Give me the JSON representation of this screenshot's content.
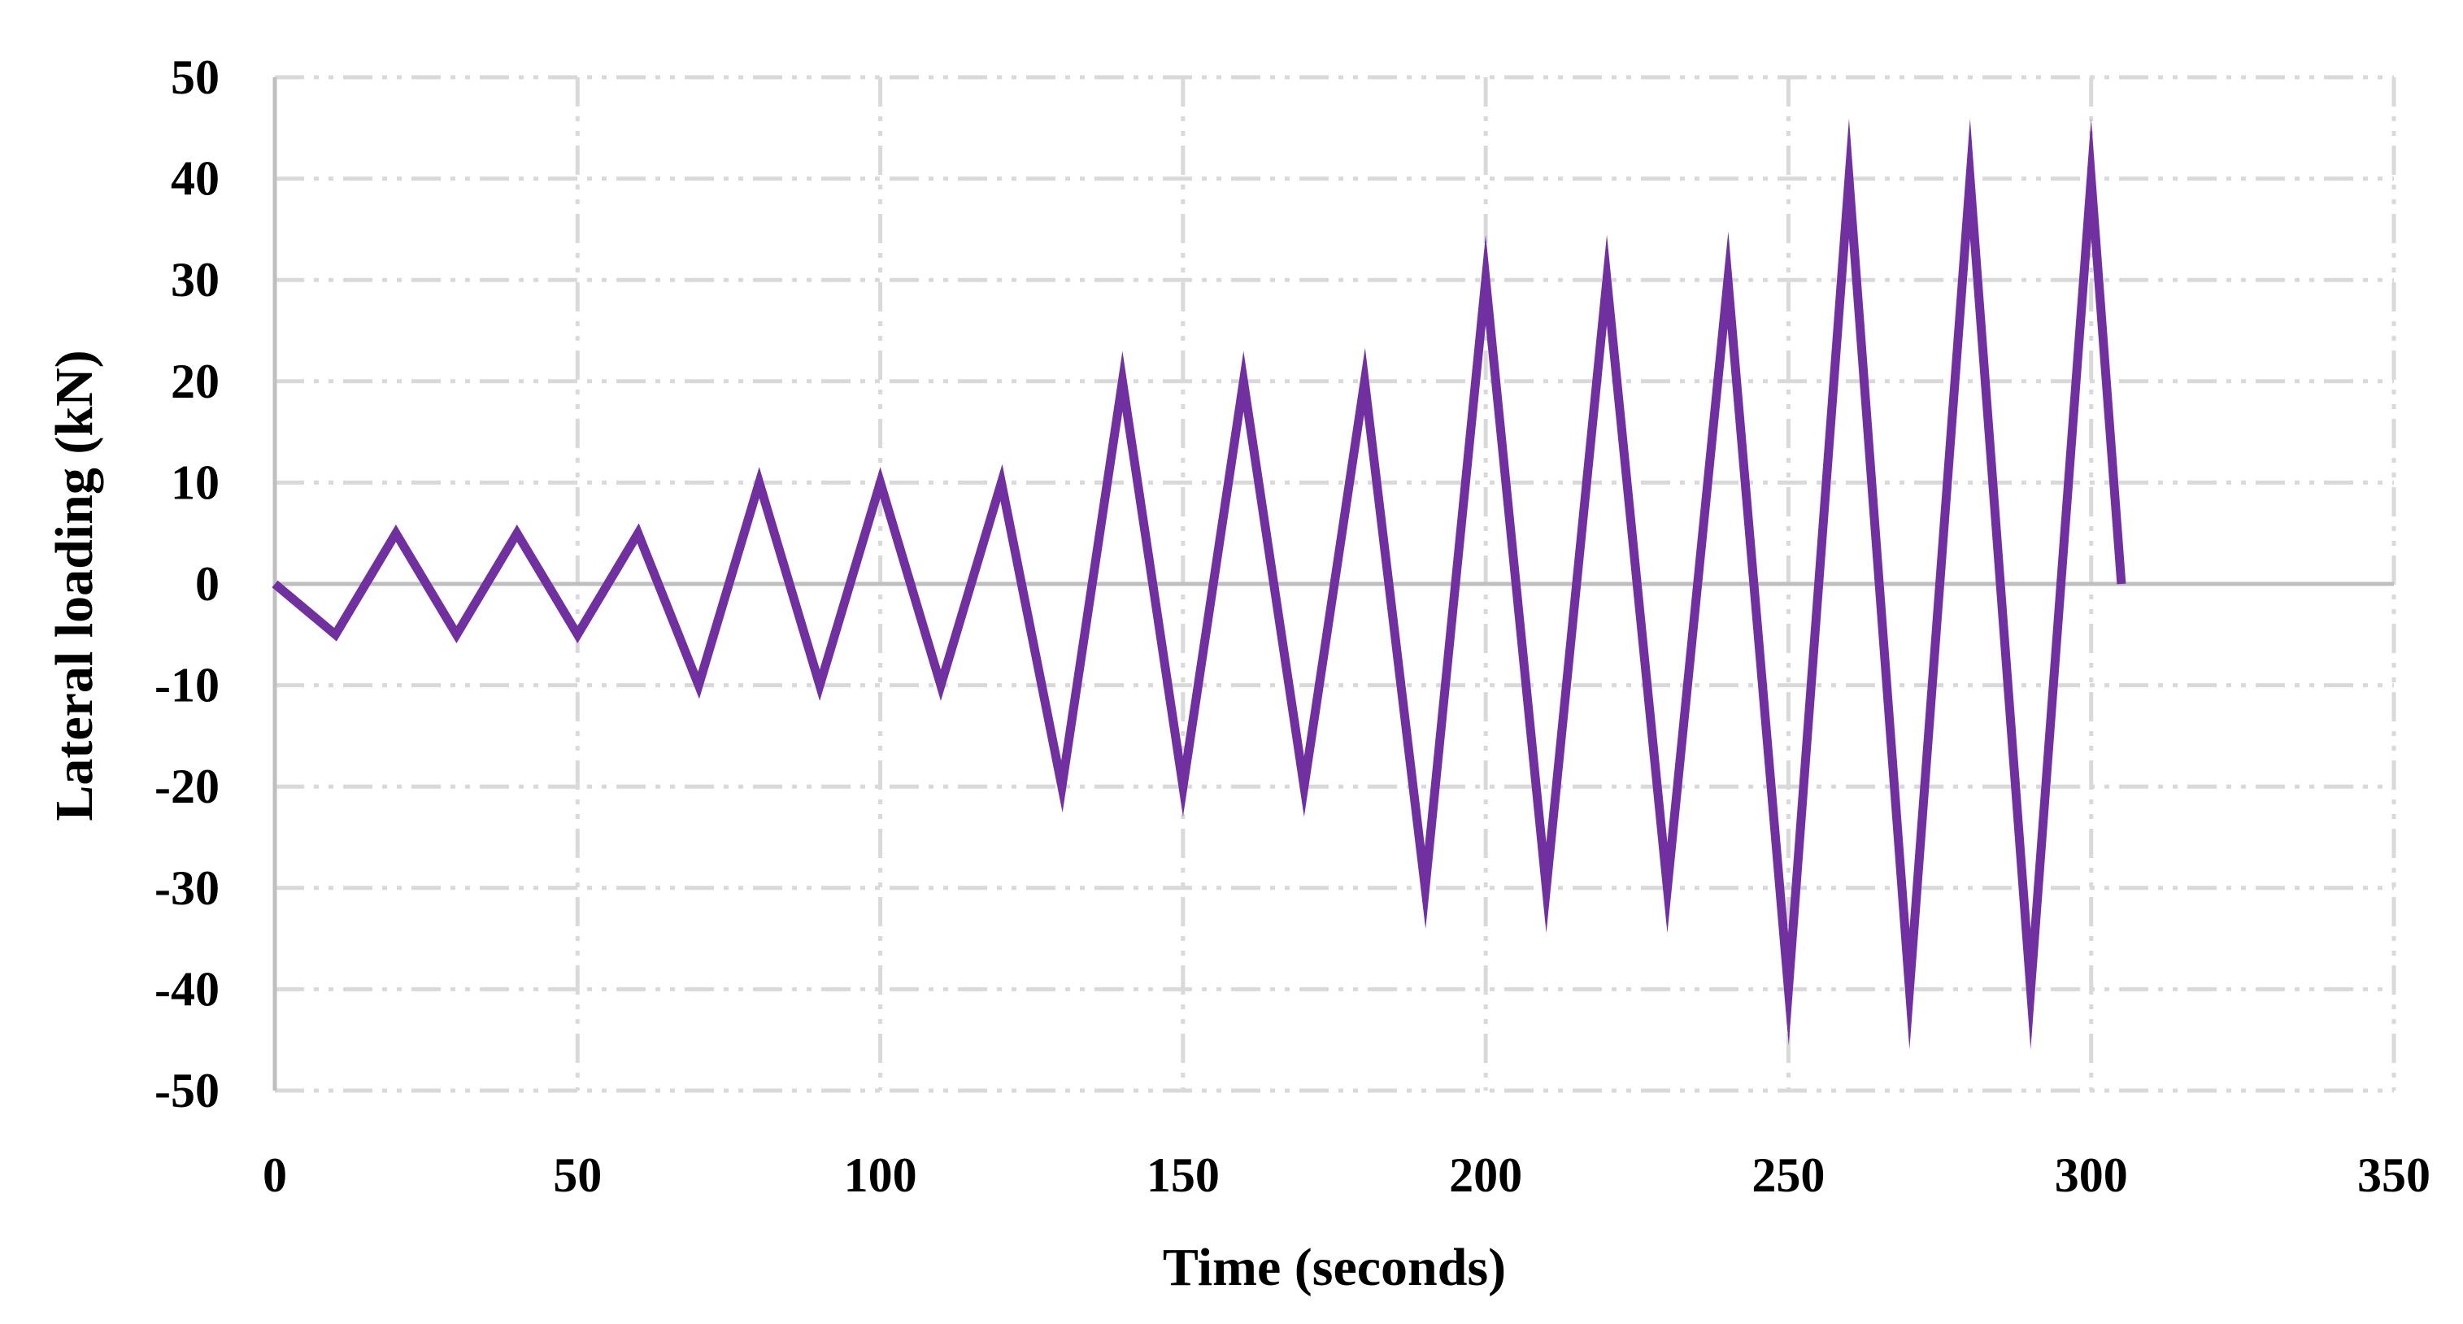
{
  "chart_data": {
    "type": "line",
    "title": "",
    "xlabel": "Time (seconds)",
    "ylabel": "Lateral loading (kN)",
    "xlim": [
      0,
      350
    ],
    "ylim": [
      -50,
      50
    ],
    "xticks": [
      0,
      50,
      100,
      150,
      200,
      250,
      300,
      350
    ],
    "yticks": [
      50,
      40,
      30,
      20,
      10,
      0,
      -10,
      -20,
      -30,
      -40,
      -50
    ],
    "xtick_labels": [
      "0",
      "50",
      "100",
      "150",
      "200",
      "250",
      "300",
      "350"
    ],
    "ytick_labels": [
      "50",
      "40",
      "30",
      "20",
      "10",
      "0",
      "-10",
      "-20",
      "-30",
      "-40",
      "-50"
    ],
    "grid": true,
    "grid_style": "dash-dot",
    "legend": "none",
    "series": [
      {
        "color": "#7030A0",
        "x": [
          0,
          10,
          20,
          30,
          40,
          50,
          60,
          70,
          80,
          90,
          100,
          110,
          120,
          130,
          140,
          150,
          160,
          170,
          180,
          190,
          200,
          210,
          220,
          230,
          240,
          250,
          260,
          270,
          280,
          290,
          300,
          305
        ],
        "y": [
          0,
          -5,
          5,
          -5,
          5,
          -5,
          5,
          -10,
          10,
          -10,
          10,
          -10,
          10,
          -20,
          20,
          -20,
          20,
          -20,
          20,
          -30,
          30,
          -30,
          30,
          -30,
          30,
          -40,
          40,
          -40,
          40,
          -40,
          40,
          0
        ]
      }
    ]
  },
  "colors": {
    "series": "#7030A0",
    "grid": "#d9d9d9",
    "axis": "#bfbfbf",
    "text": "#000000"
  }
}
